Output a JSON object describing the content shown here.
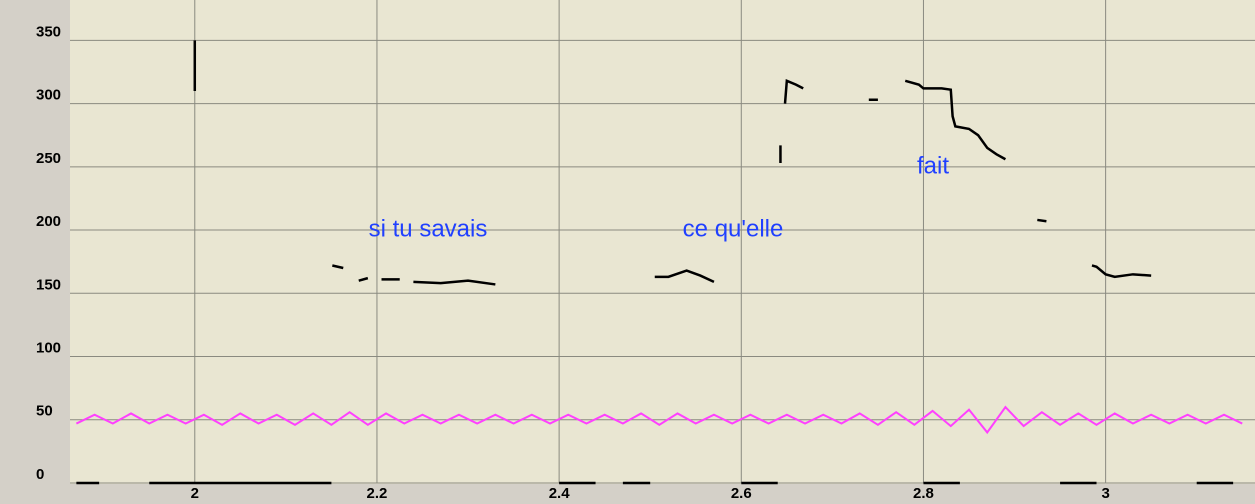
{
  "chart_data": {
    "type": "line",
    "annotations": [
      "si tu savais",
      "ce qu'elle",
      "fait"
    ],
    "xlim": [
      1.863,
      3.164
    ],
    "xticks": [
      2,
      2.2,
      2.4,
      2.6,
      2.8,
      3
    ],
    "ylim": [
      0,
      374
    ],
    "yticks": [
      0,
      50,
      100,
      150,
      200,
      250,
      300,
      350
    ],
    "grid": true,
    "series": [
      {
        "color": "#000000",
        "x": [
          2.0,
          2.0,
          null,
          2.151,
          2.163,
          null,
          2.18,
          2.19,
          null,
          2.205,
          2.225,
          null,
          2.24,
          2.27,
          2.3,
          2.33,
          null,
          2.505,
          2.52,
          2.54,
          2.555,
          2.57,
          null,
          2.643,
          2.643,
          null,
          2.648,
          2.65,
          2.66,
          2.668,
          null,
          2.74,
          2.75,
          null,
          2.78,
          2.795,
          2.8,
          2.82,
          2.83,
          2.832,
          2.835,
          2.85,
          2.86,
          2.87,
          2.88,
          2.89,
          null,
          2.925,
          2.935,
          null,
          2.985,
          2.99,
          3.0,
          3.01,
          3.03,
          3.05
        ],
        "values": [
          350,
          310,
          null,
          172,
          170,
          null,
          160,
          162,
          null,
          161,
          161,
          null,
          159,
          158,
          160,
          157,
          null,
          163,
          163,
          168,
          164,
          159,
          null,
          253,
          267,
          null,
          300,
          318,
          315,
          312,
          null,
          303,
          303,
          null,
          318,
          315,
          312,
          312,
          311,
          290,
          282,
          280,
          275,
          265,
          260,
          256,
          null,
          208,
          207,
          null,
          172,
          171,
          165,
          163,
          165,
          164
        ]
      },
      {
        "color": "#ff40ff",
        "x": [
          1.87,
          1.89,
          1.91,
          1.93,
          1.95,
          1.97,
          1.99,
          2.01,
          2.03,
          2.05,
          2.07,
          2.09,
          2.11,
          2.13,
          2.15,
          2.17,
          2.19,
          2.21,
          2.23,
          2.25,
          2.27,
          2.29,
          2.31,
          2.33,
          2.35,
          2.37,
          2.39,
          2.41,
          2.43,
          2.45,
          2.47,
          2.49,
          2.51,
          2.53,
          2.55,
          2.57,
          2.59,
          2.61,
          2.63,
          2.65,
          2.67,
          2.69,
          2.71,
          2.73,
          2.75,
          2.77,
          2.79,
          2.81,
          2.83,
          2.85,
          2.87,
          2.89,
          2.91,
          2.93,
          2.95,
          2.97,
          2.99,
          3.01,
          3.03,
          3.05,
          3.07,
          3.09,
          3.11,
          3.13,
          3.15
        ],
        "values": [
          47,
          54,
          47,
          55,
          47,
          54,
          47,
          54,
          46,
          55,
          47,
          54,
          46,
          55,
          46,
          56,
          46,
          55,
          47,
          54,
          47,
          54,
          47,
          54,
          47,
          54,
          47,
          54,
          47,
          54,
          47,
          55,
          46,
          55,
          47,
          54,
          47,
          54,
          47,
          54,
          47,
          54,
          47,
          55,
          46,
          56,
          46,
          57,
          45,
          58,
          40,
          60,
          45,
          56,
          46,
          55,
          46,
          55,
          47,
          54,
          47,
          54,
          47,
          54,
          47
        ]
      },
      {
        "color": "#000000",
        "x": [
          1.87,
          1.895,
          null,
          1.95,
          2.15,
          null,
          2.4,
          2.44,
          null,
          2.47,
          2.5,
          null,
          2.6,
          2.64,
          null,
          2.8,
          2.84,
          null,
          2.95,
          2.99,
          null,
          3.1,
          3.14
        ],
        "values": [
          0,
          0,
          null,
          0,
          0,
          null,
          0,
          0,
          null,
          0,
          0,
          null,
          0,
          0,
          null,
          0,
          0,
          null,
          0,
          0,
          null,
          0,
          0
        ]
      }
    ]
  }
}
